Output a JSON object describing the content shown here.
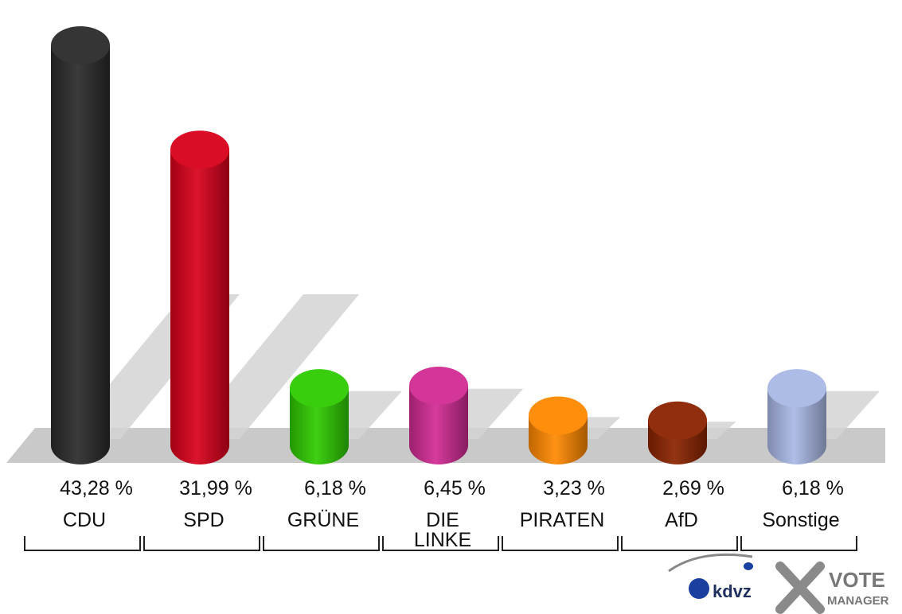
{
  "chart_data": {
    "type": "bar",
    "categories": [
      "CDU",
      "SPD",
      "GRÜNE",
      "DIE LINKE",
      "PIRATEN",
      "AfD",
      "Sonstige"
    ],
    "category_lines": [
      [
        "CDU"
      ],
      [
        "SPD"
      ],
      [
        "GRÜNE"
      ],
      [
        "DIE",
        "LINKE"
      ],
      [
        "PIRATEN"
      ],
      [
        "AfD"
      ],
      [
        "Sonstige"
      ]
    ],
    "values": [
      43.28,
      31.99,
      6.18,
      6.45,
      3.23,
      2.69,
      6.18
    ],
    "value_labels": [
      "43,28 %",
      "31,99 %",
      "6,18 %",
      "6,45 %",
      "3,23 %",
      "2,69 %",
      "6,18 %"
    ],
    "colors": [
      "#2a2a2a",
      "#d9001b",
      "#2ecb00",
      "#d12a93",
      "#ff8800",
      "#8b2300",
      "#a9b8e6"
    ],
    "ylim": [
      0,
      45
    ],
    "grid": false,
    "legend": "none",
    "style": "3d-cylinder"
  },
  "branding": {
    "logo_left": "kdvz",
    "logo_right_line1": "VOTE",
    "logo_right_line2": "MANAGER"
  }
}
